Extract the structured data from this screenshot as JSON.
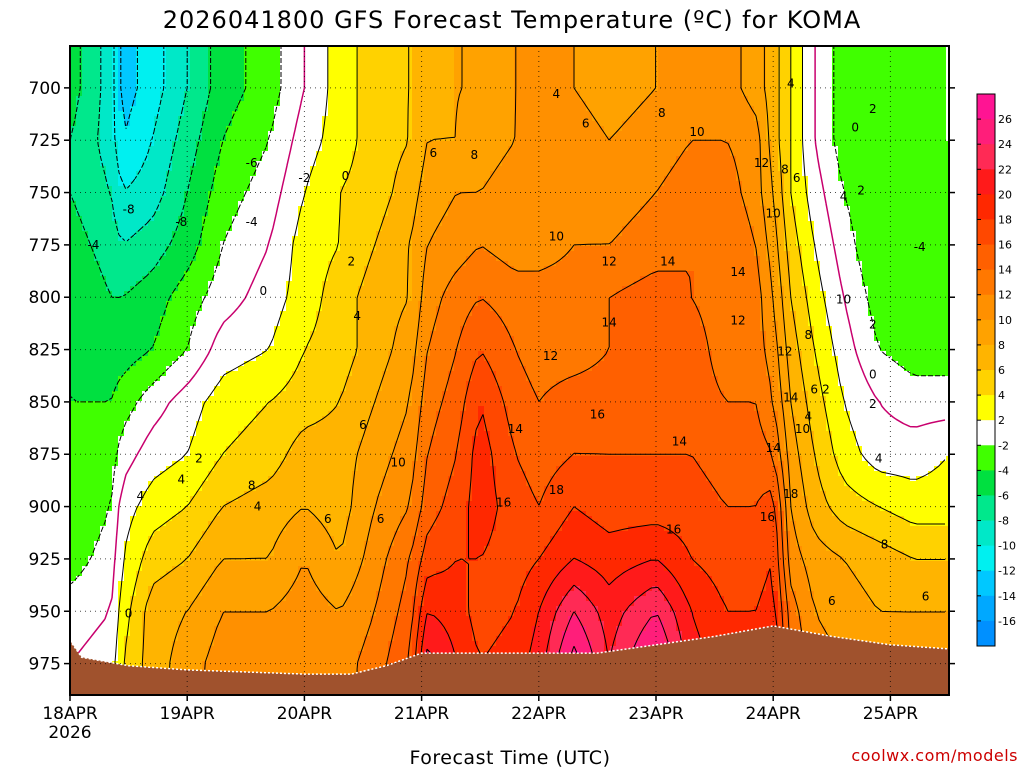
{
  "chart_data": {
    "type": "heatmap",
    "title": "2026041800 GFS Forecast Temperature (ºC) for KOMA",
    "xlabel": "Forecast Time (UTC)",
    "ylabel": "",
    "credit": "coolwx.com/models",
    "y_axis": {
      "reversed": true,
      "ylim": [
        990,
        680
      ],
      "ticks": [
        700,
        725,
        750,
        775,
        800,
        825,
        850,
        875,
        900,
        925,
        950,
        975
      ],
      "tick_labels": [
        "700",
        "725",
        "750",
        "775",
        "800",
        "825",
        "850",
        "875",
        "900",
        "925",
        "950",
        "975"
      ]
    },
    "x_axis": {
      "ticks": [
        0,
        1,
        2,
        3,
        4,
        5,
        6,
        7
      ],
      "tick_labels": [
        "18APR",
        "19APR",
        "20APR",
        "21APR",
        "22APR",
        "23APR",
        "24APR",
        "25APR"
      ],
      "sublabel": "2026",
      "xlim": [
        0,
        7.5
      ]
    },
    "grid": true,
    "colorbar": {
      "labels": [
        "26",
        "24",
        "22",
        "20",
        "18",
        "16",
        "14",
        "12",
        "10",
        "8",
        "6",
        "4",
        "2",
        "-2",
        "-4",
        "-6",
        "-8",
        "-10",
        "-12",
        "-14",
        "-16"
      ],
      "bins": [
        {
          "lo": 26,
          "hi": 28,
          "color": "#ff1493"
        },
        {
          "lo": 24,
          "hi": 26,
          "color": "#ff1e7a"
        },
        {
          "lo": 22,
          "hi": 24,
          "color": "#ff2a55"
        },
        {
          "lo": 20,
          "hi": 22,
          "color": "#ff1a1a"
        },
        {
          "lo": 18,
          "hi": 20,
          "color": "#ff2800"
        },
        {
          "lo": 16,
          "hi": 18,
          "color": "#ff4800"
        },
        {
          "lo": 14,
          "hi": 16,
          "color": "#ff6000"
        },
        {
          "lo": 12,
          "hi": 14,
          "color": "#ff7800"
        },
        {
          "lo": 10,
          "hi": 12,
          "color": "#ff9000"
        },
        {
          "lo": 8,
          "hi": 10,
          "color": "#ffa200"
        },
        {
          "lo": 6,
          "hi": 8,
          "color": "#ffb400"
        },
        {
          "lo": 4,
          "hi": 6,
          "color": "#ffd200"
        },
        {
          "lo": 2,
          "hi": 4,
          "color": "#ffff00"
        },
        {
          "lo": -2,
          "hi": 2,
          "color": "#ffffff"
        },
        {
          "lo": -4,
          "hi": -2,
          "color": "#40ff00"
        },
        {
          "lo": -6,
          "hi": -4,
          "color": "#00e040"
        },
        {
          "lo": -8,
          "hi": -6,
          "color": "#00e88c"
        },
        {
          "lo": -10,
          "hi": -8,
          "color": "#00e8c8"
        },
        {
          "lo": -12,
          "hi": -10,
          "color": "#00f0f0"
        },
        {
          "lo": -14,
          "hi": -12,
          "color": "#00c8ff"
        },
        {
          "lo": -16,
          "hi": -14,
          "color": "#00a8ff"
        },
        {
          "lo": -18,
          "hi": -16,
          "color": "#0090ff"
        }
      ]
    },
    "terrain_color": "#a0522d",
    "surface_pressure": [
      [
        0,
        964
      ],
      [
        0.1,
        972
      ],
      [
        0.5,
        976
      ],
      [
        1.0,
        978
      ],
      [
        1.5,
        979
      ],
      [
        2.0,
        980
      ],
      [
        2.4,
        980
      ],
      [
        2.7,
        976
      ],
      [
        3.0,
        970
      ],
      [
        3.5,
        970
      ],
      [
        4.0,
        970
      ],
      [
        4.5,
        970
      ],
      [
        5.0,
        966
      ],
      [
        5.5,
        962
      ],
      [
        6.0,
        957
      ],
      [
        6.5,
        962
      ],
      [
        7.0,
        966
      ],
      [
        7.5,
        968
      ]
    ],
    "anchor_times": [
      0,
      0.35,
      0.45,
      0.7,
      1.0,
      1.3,
      1.7,
      2.0,
      2.3,
      2.6,
      2.9,
      3.05,
      3.3,
      3.5,
      3.8,
      4.0,
      4.3,
      4.6,
      5.0,
      5.3,
      5.6,
      5.85,
      6.0,
      6.15,
      6.35,
      6.6,
      6.9,
      7.2,
      7.5
    ],
    "anchor_levels": [
      690,
      700,
      725,
      750,
      775,
      800,
      825,
      850,
      875,
      900,
      925,
      950,
      975
    ],
    "temperature_grid": [
      [
        -5,
        -9,
        -13,
        -11,
        -8,
        -5,
        -3,
        0,
        3,
        5,
        6,
        7,
        8,
        8,
        10,
        11,
        10,
        9,
        10,
        11,
        11,
        9,
        7,
        4,
        0,
        -3,
        -4,
        -3,
        -2
      ],
      [
        -5,
        -9,
        -13,
        -11,
        -8,
        -5,
        -3,
        0,
        3,
        5,
        6,
        7,
        8,
        8,
        10,
        11,
        10,
        9,
        10,
        11,
        11,
        9,
        7,
        4,
        0,
        -3,
        -4,
        -3,
        -2
      ],
      [
        -6,
        -9,
        -12,
        -10,
        -7,
        -4,
        -2,
        1,
        3,
        5,
        6,
        8,
        8,
        9,
        10,
        11,
        11,
        10,
        11,
        12,
        12,
        11,
        7,
        4,
        0,
        -3,
        -4,
        -3,
        -2
      ],
      [
        -6,
        -8,
        -10,
        -9,
        -6,
        -3,
        -1,
        2,
        4,
        5,
        7,
        9,
        10,
        10,
        11,
        12,
        11,
        11,
        12,
        13,
        13,
        11,
        8,
        4,
        1,
        -2,
        -4,
        -4,
        -3
      ],
      [
        -5,
        -7,
        -8,
        -7,
        -5,
        -2,
        0,
        3,
        4,
        6,
        8,
        10,
        11,
        12,
        11,
        11,
        12,
        12,
        13,
        14,
        14,
        12,
        9,
        5,
        2,
        -1,
        -4,
        -4,
        -3
      ],
      [
        -4,
        -6,
        -6,
        -5,
        -3,
        -1,
        1,
        3,
        5,
        7,
        8,
        11,
        13,
        14,
        13,
        13,
        13,
        14,
        15,
        14,
        13,
        13,
        10,
        6,
        3,
        0,
        -3,
        -4,
        -3
      ],
      [
        -4,
        -5,
        -5,
        -4,
        -2,
        1,
        2,
        4,
        5,
        7,
        9,
        12,
        14,
        16,
        14,
        13,
        13,
        14,
        15,
        15,
        13,
        13,
        11,
        7,
        4,
        1,
        -2,
        -3,
        -3
      ],
      [
        -4,
        -4,
        -3,
        -1,
        1,
        3,
        4,
        5,
        6,
        8,
        10,
        13,
        15,
        18,
        15,
        14,
        15,
        15,
        15,
        15,
        14,
        14,
        12,
        8,
        5,
        2,
        0,
        -1,
        -1
      ],
      [
        -4,
        -3,
        -1,
        1,
        2,
        4,
        5,
        7,
        7,
        9,
        11,
        14,
        16,
        19,
        16,
        15,
        16,
        16,
        16,
        16,
        15,
        15,
        14,
        9,
        6,
        3,
        1,
        1,
        2
      ],
      [
        -4,
        -2,
        1,
        3,
        4,
        6,
        7,
        8,
        7,
        10,
        12,
        15,
        17,
        19,
        17,
        16,
        18,
        17,
        17,
        17,
        16,
        16,
        17,
        10,
        7,
        5,
        4,
        3,
        3
      ],
      [
        -3,
        -1,
        2,
        5,
        6,
        8,
        8,
        10,
        8,
        11,
        14,
        17,
        18,
        18,
        17,
        18,
        20,
        19,
        20,
        18,
        17,
        17,
        18,
        11,
        9,
        8,
        7,
        6,
        6
      ],
      [
        -1,
        0,
        3,
        7,
        8,
        10,
        10,
        11,
        10,
        12,
        15,
        20,
        19,
        17,
        18,
        20,
        24,
        21,
        24,
        20,
        18,
        18,
        19,
        13,
        10,
        9,
        8,
        8,
        8
      ],
      [
        0,
        1,
        4,
        7,
        9,
        11,
        11,
        12,
        11,
        13,
        16,
        23,
        20,
        18,
        19,
        21,
        27,
        22,
        27,
        21,
        19,
        19,
        20,
        14,
        11,
        10,
        9,
        9,
        9
      ]
    ],
    "contour_labels": [
      {
        "text": "-4",
        "t": 0.2,
        "p": 775
      },
      {
        "text": "-8",
        "t": 0.5,
        "p": 758
      },
      {
        "text": "-8",
        "t": 0.95,
        "p": 764
      },
      {
        "text": "-6",
        "t": 1.55,
        "p": 736
      },
      {
        "text": "-4",
        "t": 1.55,
        "p": 764
      },
      {
        "text": "-2",
        "t": 2.0,
        "p": 743
      },
      {
        "text": "0",
        "t": 2.35,
        "p": 742
      },
      {
        "text": "0",
        "t": 1.65,
        "p": 797
      },
      {
        "text": "2",
        "t": 2.4,
        "p": 783
      },
      {
        "text": "4",
        "t": 2.45,
        "p": 809
      },
      {
        "text": "6",
        "t": 3.1,
        "p": 731
      },
      {
        "text": "8",
        "t": 3.45,
        "p": 732
      },
      {
        "text": "4",
        "t": 4.15,
        "p": 703
      },
      {
        "text": "6",
        "t": 4.4,
        "p": 717
      },
      {
        "text": "8",
        "t": 5.05,
        "p": 712
      },
      {
        "text": "10",
        "t": 5.35,
        "p": 721
      },
      {
        "text": "12",
        "t": 5.9,
        "p": 736
      },
      {
        "text": "8",
        "t": 6.1,
        "p": 739
      },
      {
        "text": "6",
        "t": 6.2,
        "p": 743
      },
      {
        "text": "4",
        "t": 6.15,
        "p": 698
      },
      {
        "text": "10",
        "t": 6.0,
        "p": 760
      },
      {
        "text": "4",
        "t": 6.6,
        "p": 752
      },
      {
        "text": "2",
        "t": 6.75,
        "p": 749
      },
      {
        "text": "0",
        "t": 6.7,
        "p": 719
      },
      {
        "text": "2",
        "t": 6.85,
        "p": 710
      },
      {
        "text": "-4",
        "t": 7.25,
        "p": 776
      },
      {
        "text": "10",
        "t": 4.15,
        "p": 771
      },
      {
        "text": "12",
        "t": 4.6,
        "p": 783
      },
      {
        "text": "14",
        "t": 5.1,
        "p": 783
      },
      {
        "text": "14",
        "t": 5.7,
        "p": 788
      },
      {
        "text": "14",
        "t": 4.6,
        "p": 812
      },
      {
        "text": "12",
        "t": 5.7,
        "p": 811
      },
      {
        "text": "12",
        "t": 6.1,
        "p": 826
      },
      {
        "text": "8",
        "t": 6.3,
        "p": 818
      },
      {
        "text": "10",
        "t": 6.6,
        "p": 801
      },
      {
        "text": "2",
        "t": 6.85,
        "p": 813
      },
      {
        "text": "0",
        "t": 6.85,
        "p": 837
      },
      {
        "text": "12",
        "t": 4.1,
        "p": 828
      },
      {
        "text": "6",
        "t": 2.5,
        "p": 861
      },
      {
        "text": "10",
        "t": 2.8,
        "p": 879
      },
      {
        "text": "14",
        "t": 3.8,
        "p": 863
      },
      {
        "text": "16",
        "t": 4.5,
        "p": 856
      },
      {
        "text": "14",
        "t": 5.2,
        "p": 869
      },
      {
        "text": "14",
        "t": 6.15,
        "p": 848
      },
      {
        "text": "6",
        "t": 6.35,
        "p": 844
      },
      {
        "text": "2",
        "t": 6.45,
        "p": 844
      },
      {
        "text": "4",
        "t": 6.3,
        "p": 857
      },
      {
        "text": "10",
        "t": 6.25,
        "p": 863
      },
      {
        "text": "14",
        "t": 6.0,
        "p": 872
      },
      {
        "text": "2",
        "t": 6.85,
        "p": 851
      },
      {
        "text": "4",
        "t": 6.9,
        "p": 877
      },
      {
        "text": "2",
        "t": 1.1,
        "p": 877
      },
      {
        "text": "4",
        "t": 0.95,
        "p": 887
      },
      {
        "text": "4",
        "t": 0.6,
        "p": 895
      },
      {
        "text": "8",
        "t": 1.55,
        "p": 890
      },
      {
        "text": "4",
        "t": 1.6,
        "p": 900
      },
      {
        "text": "6",
        "t": 2.2,
        "p": 906
      },
      {
        "text": "6",
        "t": 2.65,
        "p": 906
      },
      {
        "text": "16",
        "t": 3.7,
        "p": 898
      },
      {
        "text": "18",
        "t": 4.15,
        "p": 892
      },
      {
        "text": "16",
        "t": 5.15,
        "p": 911
      },
      {
        "text": "18",
        "t": 6.15,
        "p": 894
      },
      {
        "text": "16",
        "t": 5.95,
        "p": 905
      },
      {
        "text": "8",
        "t": 6.95,
        "p": 918
      },
      {
        "text": "6",
        "t": 7.3,
        "p": 943
      },
      {
        "text": "6",
        "t": 6.5,
        "p": 945
      },
      {
        "text": "0",
        "t": 0.5,
        "p": 951
      }
    ]
  }
}
